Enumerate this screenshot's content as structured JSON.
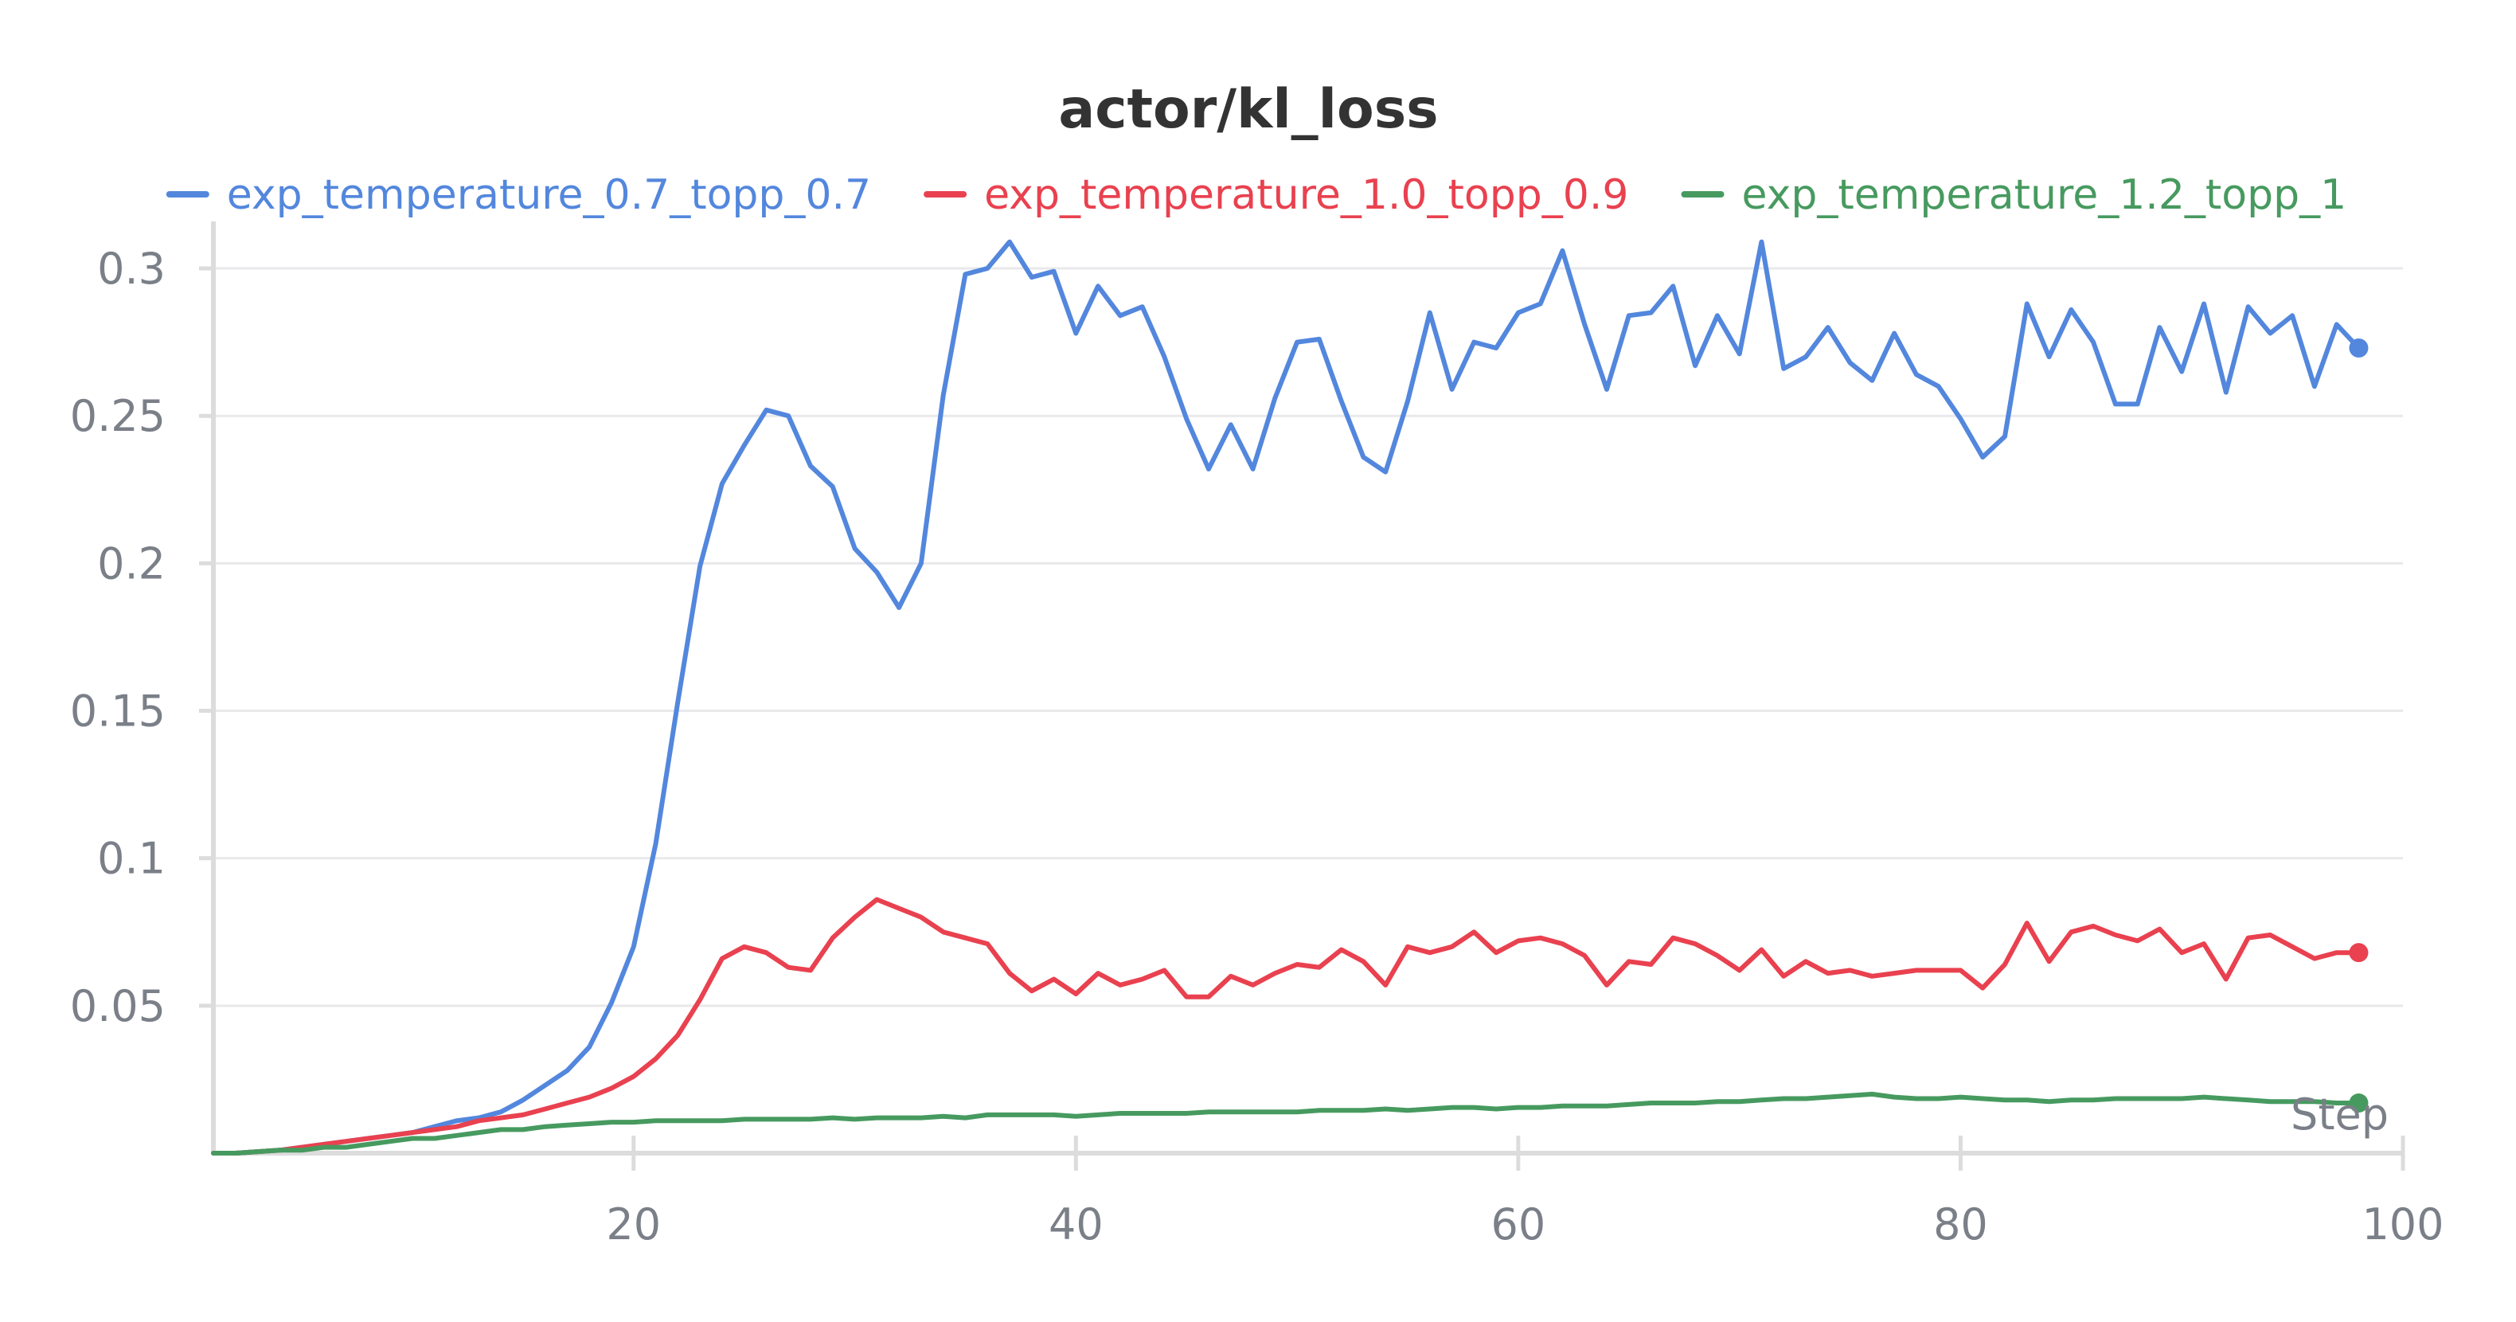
{
  "chart_data": {
    "type": "line",
    "title": "actor/kl_loss",
    "xlabel": "Step",
    "ylabel": "",
    "xlim": [
      1,
      100
    ],
    "ylim": [
      0,
      0.31
    ],
    "x_ticks": [
      20,
      40,
      60,
      80,
      100
    ],
    "x_tick_labels": [
      "20",
      "40",
      "60",
      "80",
      "100"
    ],
    "y_ticks": [
      0.05,
      0.1,
      0.15,
      0.2,
      0.25,
      0.3
    ],
    "y_tick_labels": [
      "0.05",
      "0.1",
      "0.15",
      "0.2",
      "0.25",
      "0.3"
    ],
    "grid": true,
    "legend_position": "top",
    "x": [
      1,
      2,
      3,
      4,
      5,
      6,
      7,
      8,
      9,
      10,
      11,
      12,
      13,
      14,
      15,
      16,
      17,
      18,
      19,
      20,
      21,
      22,
      23,
      24,
      25,
      26,
      27,
      28,
      29,
      30,
      31,
      32,
      33,
      34,
      35,
      36,
      37,
      38,
      39,
      40,
      41,
      42,
      43,
      44,
      45,
      46,
      47,
      48,
      49,
      50,
      51,
      52,
      53,
      54,
      55,
      56,
      57,
      58,
      59,
      60,
      61,
      62,
      63,
      64,
      65,
      66,
      67,
      68,
      69,
      70,
      71,
      72,
      73,
      74,
      75,
      76,
      77,
      78,
      79,
      80,
      81,
      82,
      83,
      84,
      85,
      86,
      87,
      88,
      89,
      90,
      91,
      92,
      93,
      94,
      95,
      96,
      97,
      98
    ],
    "series": [
      {
        "name": "exp_temperature_0.7_topp_0.7",
        "color": "#5387dd",
        "values": [
          0,
          0,
          0.0005,
          0.001,
          0.002,
          0.003,
          0.004,
          0.005,
          0.006,
          0.007,
          0.009,
          0.011,
          0.012,
          0.014,
          0.018,
          0.023,
          0.028,
          0.036,
          0.051,
          0.07,
          0.105,
          0.153,
          0.199,
          0.227,
          0.24,
          0.252,
          0.25,
          0.233,
          0.226,
          0.205,
          0.197,
          0.185,
          0.2,
          0.257,
          0.298,
          0.3,
          0.309,
          0.297,
          0.299,
          0.278,
          0.294,
          0.284,
          0.287,
          0.27,
          0.249,
          0.232,
          0.247,
          0.232,
          0.256,
          0.275,
          0.276,
          0.255,
          0.236,
          0.231,
          0.255,
          0.285,
          0.259,
          0.275,
          0.273,
          0.285,
          0.288,
          0.306,
          0.281,
          0.259,
          0.284,
          0.285,
          0.294,
          0.267,
          0.284,
          0.271,
          0.309,
          0.266,
          0.27,
          0.28,
          0.268,
          0.262,
          0.278,
          0.264,
          0.26,
          0.249,
          0.236,
          0.243,
          0.288,
          0.27,
          0.286,
          0.275,
          0.254,
          0.254,
          0.28,
          0.265,
          0.288,
          0.258,
          0.287,
          0.278,
          0.284,
          0.26,
          0.281,
          0.273
        ]
      },
      {
        "name": "exp_temperature_1.0_topp_0.9",
        "color": "#e9414f",
        "values": [
          0,
          0,
          0.0005,
          0.001,
          0.002,
          0.003,
          0.004,
          0.005,
          0.006,
          0.007,
          0.008,
          0.009,
          0.011,
          0.012,
          0.013,
          0.015,
          0.017,
          0.019,
          0.022,
          0.026,
          0.032,
          0.04,
          0.052,
          0.066,
          0.07,
          0.068,
          0.063,
          0.062,
          0.073,
          0.08,
          0.086,
          0.083,
          0.08,
          0.075,
          0.073,
          0.071,
          0.061,
          0.055,
          0.059,
          0.054,
          0.061,
          0.057,
          0.059,
          0.062,
          0.053,
          0.053,
          0.06,
          0.057,
          0.061,
          0.064,
          0.063,
          0.069,
          0.065,
          0.057,
          0.07,
          0.068,
          0.07,
          0.075,
          0.068,
          0.072,
          0.073,
          0.071,
          0.067,
          0.057,
          0.065,
          0.064,
          0.073,
          0.071,
          0.067,
          0.062,
          0.069,
          0.06,
          0.065,
          0.061,
          0.062,
          0.06,
          0.061,
          0.062,
          0.062,
          0.062,
          0.056,
          0.064,
          0.078,
          0.065,
          0.075,
          0.077,
          0.074,
          0.072,
          0.076,
          0.068,
          0.071,
          0.059,
          0.073,
          0.074,
          0.07,
          0.066,
          0.068,
          0.068
        ]
      },
      {
        "name": "exp_temperature_1.2_topp_1",
        "color": "#479a5f",
        "values": [
          0,
          0,
          0.0005,
          0.001,
          0.001,
          0.002,
          0.002,
          0.003,
          0.004,
          0.005,
          0.005,
          0.006,
          0.007,
          0.008,
          0.008,
          0.009,
          0.0095,
          0.01,
          0.0105,
          0.0105,
          0.011,
          0.011,
          0.011,
          0.011,
          0.0115,
          0.0115,
          0.0115,
          0.0115,
          0.012,
          0.0115,
          0.012,
          0.012,
          0.012,
          0.0125,
          0.012,
          0.013,
          0.013,
          0.013,
          0.013,
          0.0125,
          0.013,
          0.0135,
          0.0135,
          0.0135,
          0.0135,
          0.014,
          0.014,
          0.014,
          0.014,
          0.014,
          0.0145,
          0.0145,
          0.0145,
          0.015,
          0.0145,
          0.015,
          0.0155,
          0.0155,
          0.015,
          0.0155,
          0.0155,
          0.016,
          0.016,
          0.016,
          0.0165,
          0.017,
          0.017,
          0.017,
          0.0175,
          0.0175,
          0.018,
          0.0185,
          0.0185,
          0.019,
          0.0195,
          0.02,
          0.019,
          0.0185,
          0.0185,
          0.019,
          0.0185,
          0.018,
          0.018,
          0.0175,
          0.018,
          0.018,
          0.0185,
          0.0185,
          0.0185,
          0.0185,
          0.019,
          0.0185,
          0.018,
          0.0175,
          0.0175,
          0.0175,
          0.017,
          0.017
        ]
      }
    ]
  }
}
